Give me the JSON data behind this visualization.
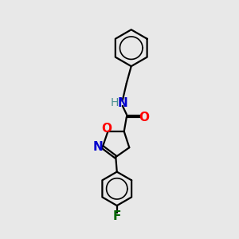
{
  "bg_color": "#e8e8e8",
  "bond_color": "#000000",
  "atom_colors": {
    "O": "#ff0000",
    "N": "#0000cd",
    "F": "#006400",
    "H": "#4a9090"
  },
  "line_width": 1.6,
  "font_size": 11
}
